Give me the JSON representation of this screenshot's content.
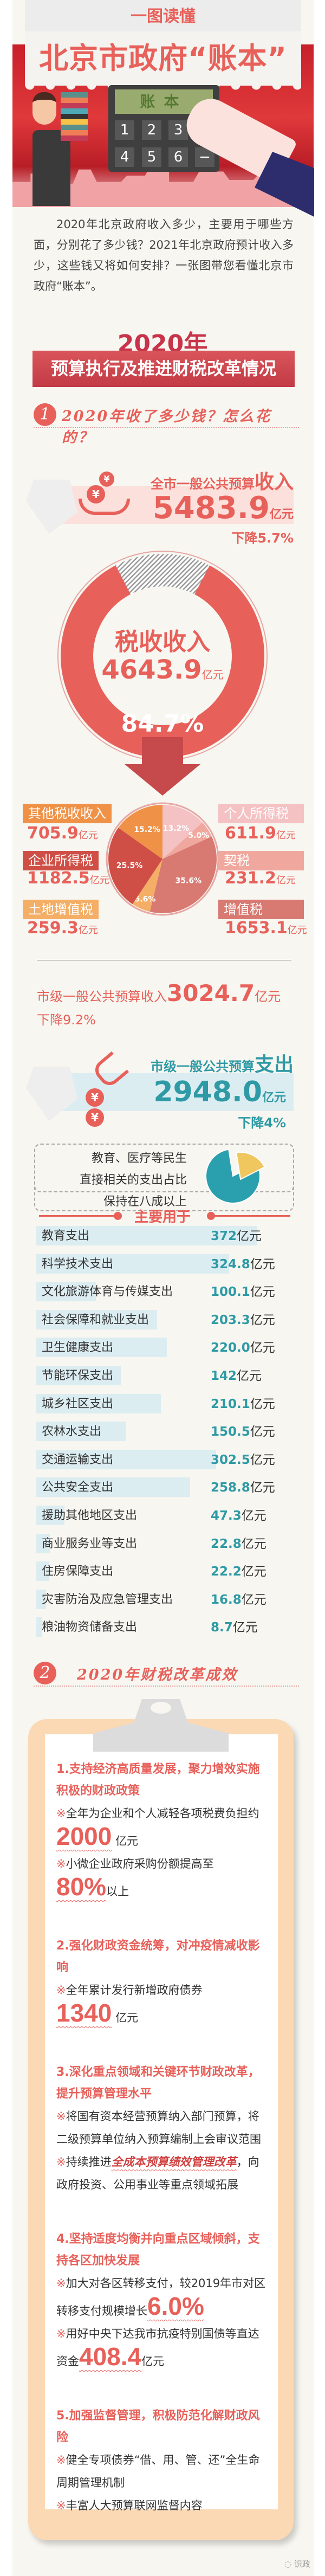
{
  "header": {
    "kicker": "一图读懂",
    "title": "北京市政府“账本”"
  },
  "illustration": {
    "screen": "账本",
    "keys": [
      "1",
      "2",
      "3",
      "+",
      "4",
      "5",
      "6",
      "−"
    ]
  },
  "intro": "2020年北京政府收入多少，主要用于哪些方面，分别花了多少钱？2021年北京政府预计收入多少，这些钱又将如何安排？一张图带您看懂北京市政府“账本”。",
  "banner": {
    "year": "2020年",
    "title": "预算执行及推进财税改革情况"
  },
  "section1": {
    "num": "1",
    "title": "2020年收了多少钱？怎么花的？"
  },
  "income": {
    "label": "全市一般公共预算",
    "label_em": "收入",
    "value": "5483.9",
    "unit": "亿元",
    "change": "下降5.7%"
  },
  "tax": {
    "label": "税收收入",
    "value": "4643.9",
    "unit": "亿元",
    "share": "84.7%",
    "share_value": 84.7
  },
  "chart_data": {
    "type": "pie",
    "title": "",
    "slices": [
      {
        "name": "个人所得税",
        "value": 611.9,
        "percent": 13.2,
        "label": "13.2%",
        "color": "#f5c2c4"
      },
      {
        "name": "契税",
        "value": 231.2,
        "percent": 5.0,
        "label": "5.0%",
        "color": "#f0a89e"
      },
      {
        "name": "增值税",
        "value": 1653.1,
        "percent": 35.6,
        "label": "35.6%",
        "color": "#d87a72"
      },
      {
        "name": "土地增值税",
        "value": 259.3,
        "percent": 5.6,
        "label": "5.6%",
        "color": "#f4ae66"
      },
      {
        "name": "企业所得税",
        "value": 1182.5,
        "percent": 25.5,
        "label": "25.5%",
        "color": "#cf4f46"
      },
      {
        "name": "其他税收收入",
        "value": 705.9,
        "percent": 15.2,
        "label": "15.2%",
        "color": "#ef9248"
      }
    ]
  },
  "pie_labels": {
    "other": {
      "name": "其他税收收入",
      "value": "705.9",
      "unit": "亿元"
    },
    "corp": {
      "name": "企业所得税",
      "value": "1182.5",
      "unit": "亿元"
    },
    "land": {
      "name": "土地增值税",
      "value": "259.3",
      "unit": "亿元"
    },
    "personal": {
      "name": "个人所得税",
      "value": "611.9",
      "unit": "亿元"
    },
    "deed": {
      "name": "契税",
      "value": "231.2",
      "unit": "亿元"
    },
    "vat": {
      "name": "增值税",
      "value": "1653.1",
      "unit": "亿元"
    }
  },
  "city_income": {
    "label": "市级一般公共预算收入",
    "value": "3024.7",
    "unit": "亿元",
    "change": "下降9.2%"
  },
  "expense": {
    "label": "市级一般公共预算",
    "label_em": "支出",
    "value": "2948.0",
    "unit": "亿元",
    "change": "下降4%"
  },
  "livelihood": {
    "lines": [
      "教育、医疗等民生",
      "直接相关的支出占比",
      "保持在八成以上"
    ],
    "share": 80
  },
  "main_uses": {
    "title": "主要用于",
    "unit": "亿元",
    "rows": [
      {
        "label": "教育支出",
        "value": "372",
        "num": 372
      },
      {
        "label": "科学技术支出",
        "value": "324.8",
        "num": 324.8
      },
      {
        "label": "文化旅游体育与传媒支出",
        "value": "100.1",
        "num": 100.1
      },
      {
        "label": "社会保障和就业支出",
        "value": "203.3",
        "num": 203.3
      },
      {
        "label": "卫生健康支出",
        "value": "220.0",
        "num": 220.0
      },
      {
        "label": "节能环保支出",
        "value": "142",
        "num": 142
      },
      {
        "label": "城乡社区支出",
        "value": "210.1",
        "num": 210.1
      },
      {
        "label": "农林水支出",
        "value": "150.5",
        "num": 150.5
      },
      {
        "label": "交通运输支出",
        "value": "302.5",
        "num": 302.5
      },
      {
        "label": "公共安全支出",
        "value": "258.8",
        "num": 258.8
      },
      {
        "label": "援助其他地区支出",
        "value": "47.3",
        "num": 47.3
      },
      {
        "label": "商业服务业等支出",
        "value": "22.8",
        "num": 22.8
      },
      {
        "label": "住房保障支出",
        "value": "22.2",
        "num": 22.2
      },
      {
        "label": "灾害防治及应急管理支出",
        "value": "16.8",
        "num": 16.8
      },
      {
        "label": "粮油物资储备支出",
        "value": "8.7",
        "num": 8.7
      }
    ]
  },
  "section2": {
    "num": "2",
    "title": "2020年财税改革成效"
  },
  "reforms": {
    "i1": {
      "title": "1.支持经济高质量发展，聚力增效实施积极的财政政策",
      "p1a": "全年为企业和个人减轻各项税费负担约",
      "p1b": "2000",
      "p1c": " 亿元",
      "p2a": "小微企业政府采购份额提高至",
      "p2b": "80%",
      "p2c": "以上"
    },
    "i2": {
      "title": "2.强化财政资金统筹，对冲疫情减收影响",
      "p1a": "全年累计发行新增政府债券",
      "p1b": "1340",
      "p1c": " 亿元"
    },
    "i3": {
      "title": "3.深化重点领域和关键环节财政改革，提升预算管理水平",
      "p1": "将国有资本经营预算纳入部门预算，将二级预算单位纳入预算编制上会审议范围",
      "p2a": "持续推进",
      "p2b": "全成本预算绩效管理改革",
      "p2c": "，向政府投资、公用事业等重点领域拓展"
    },
    "i4": {
      "title": "4.坚持适度均衡并向重点区域倾斜，支持各区加快发展",
      "p1a": "加大对各区转移支付，较2019年市对区转移支付规模增长",
      "p1b": "6.0%",
      "p2a": "用好中央下达我市抗疫特别国债等直达资金",
      "p2b": "408.4",
      "p2c": "亿元"
    },
    "i5": {
      "title": "5.加强监督管理，积极防范化解财政风险",
      "p1": "健全专项债券“借、用、管、还”全生命周期管理机制",
      "p2": "丰富人大预算联网监督内容"
    },
    "bullet": "※"
  },
  "footer": {
    "watermark": "识政"
  },
  "colors": {
    "red": "#e8605a",
    "teal": "#2e9aa5",
    "background": "#f7f6f0",
    "clipboard": "#fbd9b5"
  }
}
